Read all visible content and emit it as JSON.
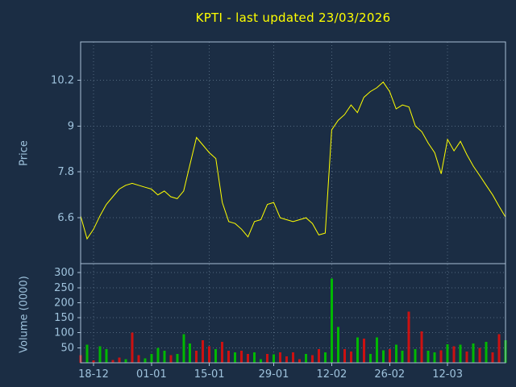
{
  "title": "KPTI - last updated 23/03/2026",
  "colors": {
    "background": "#1b2d44",
    "accent_yellow": "#ffff00",
    "axis_text": "#9fc3dd",
    "grid": "#52687e",
    "border": "#a9c0d6",
    "volume_up": "#00b800",
    "volume_down": "#cc1111"
  },
  "chart_data": [
    {
      "type": "line",
      "title": "KPTI - last updated 23/03/2026",
      "ylabel": "Price",
      "ylim": [
        5.4,
        11.2
      ],
      "yticks": [
        6.6,
        7.8,
        9,
        10.2
      ],
      "grid": "dotted",
      "legend": "none",
      "x_tick_labels": [
        "18-12",
        "01-01",
        "15-01",
        "29-01",
        "12-02",
        "26-02",
        "12-03"
      ],
      "x_tick_indices": [
        2,
        11,
        20,
        30,
        39,
        48,
        57
      ],
      "line_color": "#ffff00",
      "values": [
        6.65,
        6.05,
        6.3,
        6.65,
        6.95,
        7.15,
        7.35,
        7.45,
        7.5,
        7.45,
        7.4,
        7.35,
        7.2,
        7.3,
        7.15,
        7.1,
        7.3,
        8.0,
        8.7,
        8.5,
        8.3,
        8.15,
        7.0,
        6.5,
        6.45,
        6.3,
        6.1,
        6.5,
        6.55,
        6.95,
        7.0,
        6.6,
        6.55,
        6.5,
        6.55,
        6.6,
        6.45,
        6.15,
        6.2,
        8.9,
        9.15,
        9.3,
        9.55,
        9.35,
        9.75,
        9.9,
        10.0,
        10.15,
        9.9,
        9.45,
        9.55,
        9.5,
        9.0,
        8.85,
        8.55,
        8.3,
        7.75,
        8.65,
        8.35,
        8.6,
        8.25,
        7.95,
        7.7,
        7.45,
        7.2,
        6.9,
        6.62
      ]
    },
    {
      "type": "bar",
      "ylabel": "Volume (0000)",
      "ylim": [
        0,
        330
      ],
      "yticks": [
        50,
        100,
        150,
        200,
        250,
        300
      ],
      "grid": "dotted",
      "values": [
        25,
        60,
        8,
        55,
        45,
        10,
        18,
        12,
        100,
        25,
        15,
        30,
        50,
        40,
        25,
        30,
        95,
        65,
        40,
        75,
        55,
        45,
        70,
        40,
        35,
        40,
        30,
        35,
        12,
        30,
        28,
        35,
        22,
        35,
        12,
        30,
        25,
        45,
        35,
        280,
        120,
        45,
        38,
        85,
        80,
        30,
        85,
        42,
        45,
        60,
        40,
        170,
        45,
        105,
        40,
        35,
        42,
        62,
        55,
        60,
        38,
        65,
        50,
        70,
        35,
        95,
        75
      ],
      "colors": [
        "r",
        "g",
        "r",
        "g",
        "g",
        "r",
        "r",
        "g",
        "r",
        "r",
        "g",
        "g",
        "g",
        "g",
        "r",
        "g",
        "g",
        "g",
        "r",
        "r",
        "r",
        "g",
        "r",
        "r",
        "g",
        "r",
        "r",
        "g",
        "g",
        "r",
        "g",
        "r",
        "r",
        "r",
        "r",
        "g",
        "r",
        "r",
        "g",
        "g",
        "g",
        "r",
        "r",
        "g",
        "r",
        "g",
        "g",
        "g",
        "r",
        "g",
        "g",
        "r",
        "g",
        "r",
        "g",
        "g",
        "r",
        "g",
        "r",
        "g",
        "r",
        "g",
        "r",
        "g",
        "r",
        "r",
        "g"
      ]
    }
  ]
}
